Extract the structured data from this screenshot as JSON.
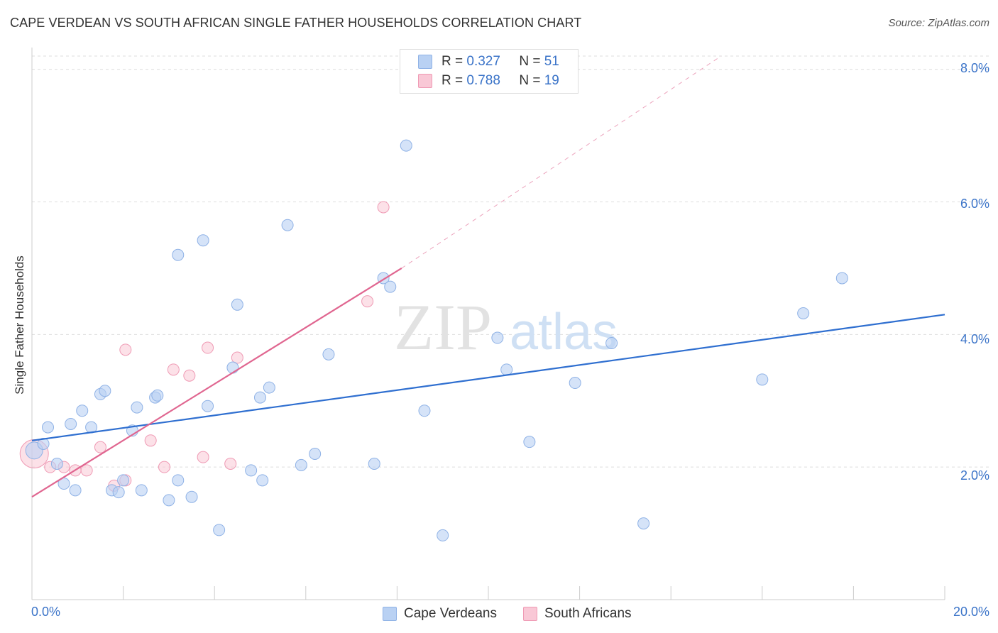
{
  "title": "CAPE VERDEAN VS SOUTH AFRICAN SINGLE FATHER HOUSEHOLDS CORRELATION CHART",
  "source": "Source: ZipAtlas.com",
  "watermark": {
    "zip": "ZIP",
    "atlas": "atlas"
  },
  "colors": {
    "blue_fill": "#b9d1f3",
    "blue_stroke": "#8fb2e6",
    "blue_line": "#2f6fd0",
    "pink_fill": "#f9c8d6",
    "pink_stroke": "#ef9ab4",
    "pink_line": "#e06690",
    "label_blue": "#3a73c8",
    "grid": "#dddddd"
  },
  "legend_top": {
    "rows": [
      {
        "r_label": "R =",
        "r_value": "0.327",
        "n_label": "N =",
        "n_value": "51"
      },
      {
        "r_label": "R =",
        "r_value": "0.788",
        "n_label": "N =",
        "n_value": "19"
      }
    ]
  },
  "legend_bottom": {
    "items": [
      "Cape Verdeans",
      "South Africans"
    ]
  },
  "chart_data": {
    "type": "scatter",
    "title": "CAPE VERDEAN VS SOUTH AFRICAN SINGLE FATHER HOUSEHOLDS CORRELATION CHART",
    "xlabel": "",
    "ylabel": "Single Father Households",
    "xlim": [
      0,
      20
    ],
    "ylim": [
      0,
      8.2
    ],
    "x_tick_labels": [
      "0.0%",
      "20.0%"
    ],
    "y_ticks": [
      2,
      4,
      6,
      8
    ],
    "y_tick_labels": [
      "2.0%",
      "4.0%",
      "6.0%",
      "8.0%"
    ],
    "grid": "horizontal dashed",
    "legend_position": "top-center",
    "series": [
      {
        "name": "Cape Verdeans",
        "r": 0.327,
        "n": 51,
        "points": [
          [
            0.05,
            2.25
          ],
          [
            0.25,
            2.35
          ],
          [
            0.35,
            2.6
          ],
          [
            0.55,
            2.05
          ],
          [
            0.7,
            1.75
          ],
          [
            0.85,
            2.65
          ],
          [
            0.95,
            1.65
          ],
          [
            1.1,
            2.85
          ],
          [
            1.3,
            2.6
          ],
          [
            1.5,
            3.1
          ],
          [
            1.6,
            3.15
          ],
          [
            1.75,
            1.65
          ],
          [
            1.9,
            1.62
          ],
          [
            2.0,
            1.8
          ],
          [
            2.2,
            2.55
          ],
          [
            2.3,
            2.9
          ],
          [
            2.4,
            1.65
          ],
          [
            2.7,
            3.05
          ],
          [
            2.75,
            3.08
          ],
          [
            3.0,
            1.5
          ],
          [
            3.2,
            1.8
          ],
          [
            3.2,
            5.2
          ],
          [
            3.5,
            1.55
          ],
          [
            3.75,
            5.42
          ],
          [
            3.85,
            2.92
          ],
          [
            4.1,
            1.05
          ],
          [
            4.4,
            3.5
          ],
          [
            4.5,
            4.45
          ],
          [
            4.8,
            1.95
          ],
          [
            5.0,
            3.05
          ],
          [
            5.2,
            3.2
          ],
          [
            5.05,
            1.8
          ],
          [
            5.6,
            5.65
          ],
          [
            5.9,
            2.03
          ],
          [
            6.2,
            2.2
          ],
          [
            6.5,
            3.7
          ],
          [
            7.5,
            2.05
          ],
          [
            7.7,
            4.85
          ],
          [
            7.85,
            4.72
          ],
          [
            8.2,
            6.85
          ],
          [
            8.6,
            2.85
          ],
          [
            9.0,
            0.97
          ],
          [
            10.2,
            3.95
          ],
          [
            10.4,
            3.47
          ],
          [
            10.9,
            2.38
          ],
          [
            11.9,
            3.27
          ],
          [
            12.7,
            3.87
          ],
          [
            13.4,
            1.15
          ],
          [
            16.0,
            3.32
          ],
          [
            16.9,
            4.32
          ],
          [
            17.75,
            4.85
          ]
        ]
      },
      {
        "name": "South Africans",
        "r": 0.788,
        "n": 19,
        "points": [
          [
            0.05,
            2.2
          ],
          [
            0.4,
            2.0
          ],
          [
            0.7,
            2.0
          ],
          [
            0.95,
            1.95
          ],
          [
            1.2,
            1.95
          ],
          [
            1.5,
            2.3
          ],
          [
            1.8,
            1.72
          ],
          [
            2.05,
            1.8
          ],
          [
            2.05,
            3.77
          ],
          [
            2.6,
            2.4
          ],
          [
            2.9,
            2.0
          ],
          [
            3.1,
            3.47
          ],
          [
            3.45,
            3.38
          ],
          [
            3.75,
            2.15
          ],
          [
            3.85,
            3.8
          ],
          [
            4.35,
            2.05
          ],
          [
            4.5,
            3.65
          ],
          [
            7.35,
            4.5
          ],
          [
            7.7,
            5.92
          ]
        ]
      }
    ],
    "trend_lines": [
      {
        "series": "Cape Verdeans",
        "x": [
          0,
          20
        ],
        "y": [
          2.4,
          4.3
        ],
        "style": "solid"
      },
      {
        "series": "South Africans",
        "x": [
          0,
          8.1
        ],
        "y": [
          1.55,
          5.0
        ],
        "style": "solid",
        "extended_dashed_to": [
          15.1,
          8.2
        ]
      }
    ]
  }
}
